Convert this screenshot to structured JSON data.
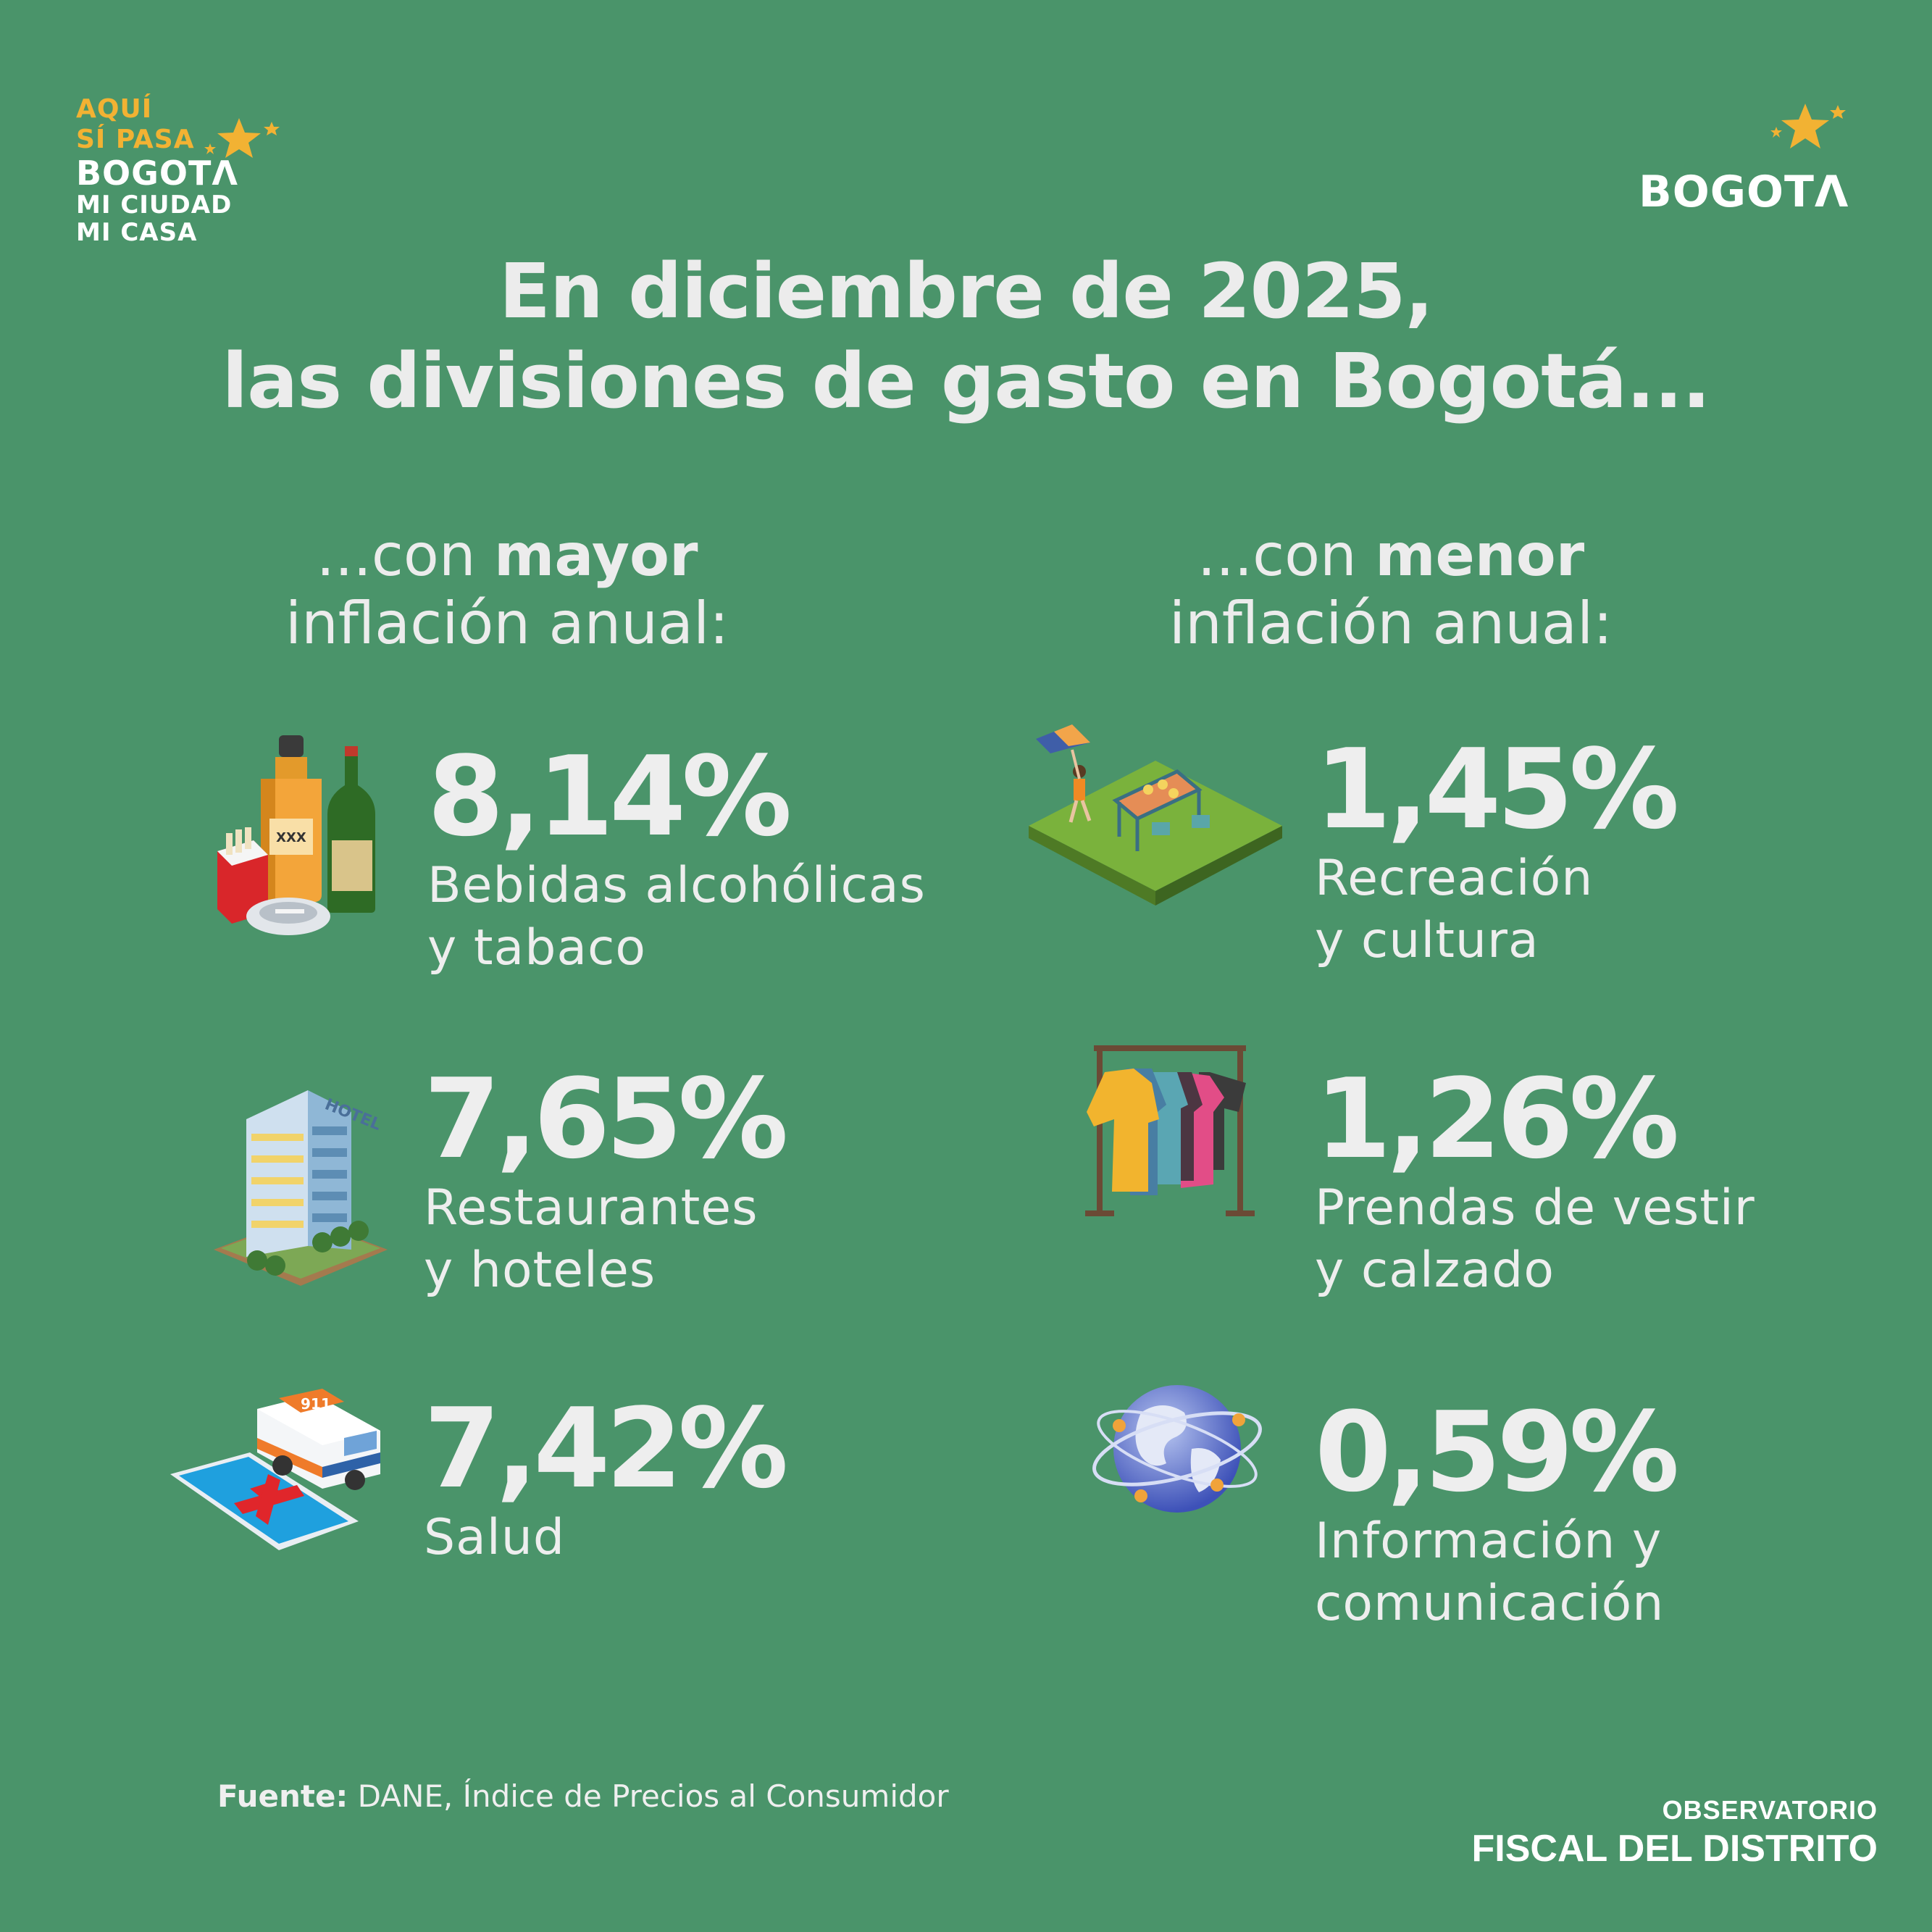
{
  "logo_left": {
    "line1": "AQUÍ",
    "line2": "SÍ PASA",
    "line3": "BOGOTΛ",
    "line4": "MI CIUDAD",
    "line5": "MI CASA"
  },
  "logo_right": {
    "text": "BOGOTΛ"
  },
  "title": {
    "line1": "En diciembre de 2025,",
    "line2": "las divisiones de gasto en Bogotá..."
  },
  "left_header": {
    "prefix": "...con ",
    "bold": "mayor",
    "line2": "inflación anual:"
  },
  "right_header": {
    "prefix": "...con ",
    "bold": "menor",
    "line2": "inflación anual:"
  },
  "left_items": [
    {
      "value": "8,14%",
      "label_line1": "Bebidas alcohólicas",
      "label_line2": "y tabaco",
      "icon": "bottles-tobacco-icon"
    },
    {
      "value": "7,65%",
      "label_line1": "Restaurantes",
      "label_line2": "y hoteles",
      "icon": "hotel-building-icon"
    },
    {
      "value": "7,42%",
      "label_line1": "Salud",
      "label_line2": "",
      "icon": "ambulance-health-icon"
    }
  ],
  "right_items": [
    {
      "value": "1,45%",
      "label_line1": "Recreación",
      "label_line2": "y cultura",
      "icon": "park-recreation-icon"
    },
    {
      "value": "1,26%",
      "label_line1": "Prendas de vestir",
      "label_line2": "y calzado",
      "icon": "clothes-rack-icon"
    },
    {
      "value": "0,59%",
      "label_line1": "Información y",
      "label_line2": "comunicación",
      "icon": "globe-network-icon"
    }
  ],
  "source": {
    "label": "Fuente:",
    "text": "DANE, Índice de Precios al Consumidor"
  },
  "observatorio": {
    "line1": "OBSERVATORIO",
    "line2": "FISCAL DEL DISTRITO"
  },
  "colors": {
    "background": "#4a946a",
    "text": "#ececec",
    "accent": "#f2b233"
  }
}
